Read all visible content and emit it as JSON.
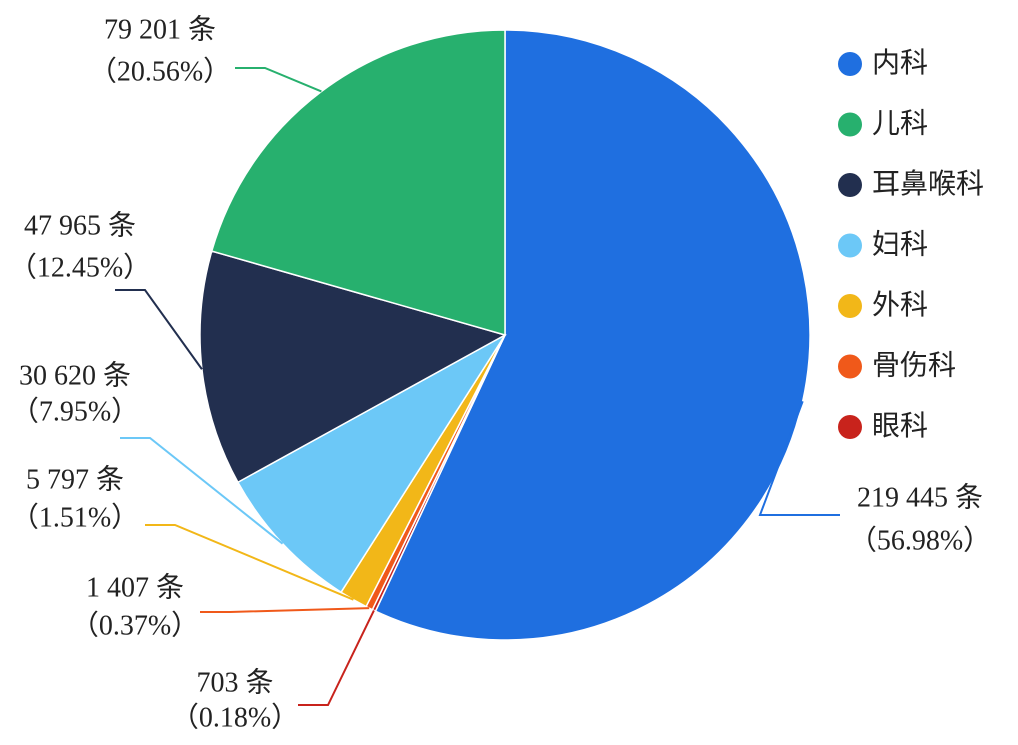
{
  "chart_data": {
    "type": "pie",
    "categories": [
      "内科",
      "儿科",
      "耳鼻喉科",
      "妇科",
      "外科",
      "骨伤科",
      "眼科"
    ],
    "values": [
      219445,
      79201,
      47965,
      30620,
      5797,
      1407,
      703
    ],
    "value_labels": [
      "219 445 条",
      "79 201 条",
      "47 965 条",
      "30 620 条",
      "5 797 条",
      "1 407 条",
      "703 条"
    ],
    "percents": [
      56.98,
      20.56,
      12.45,
      7.95,
      1.51,
      0.37,
      0.18
    ],
    "percent_labels": [
      "（56.98%）",
      "（20.56%）",
      "（12.45%）",
      "（7.95%）",
      "（1.51%）",
      "（0.37%）",
      "（0.18%）"
    ],
    "colors": [
      "#1f6fe0",
      "#27b06e",
      "#222f4f",
      "#6cc8f7",
      "#f2b718",
      "#f0591a",
      "#c8231c"
    ],
    "legend": "top-right"
  }
}
